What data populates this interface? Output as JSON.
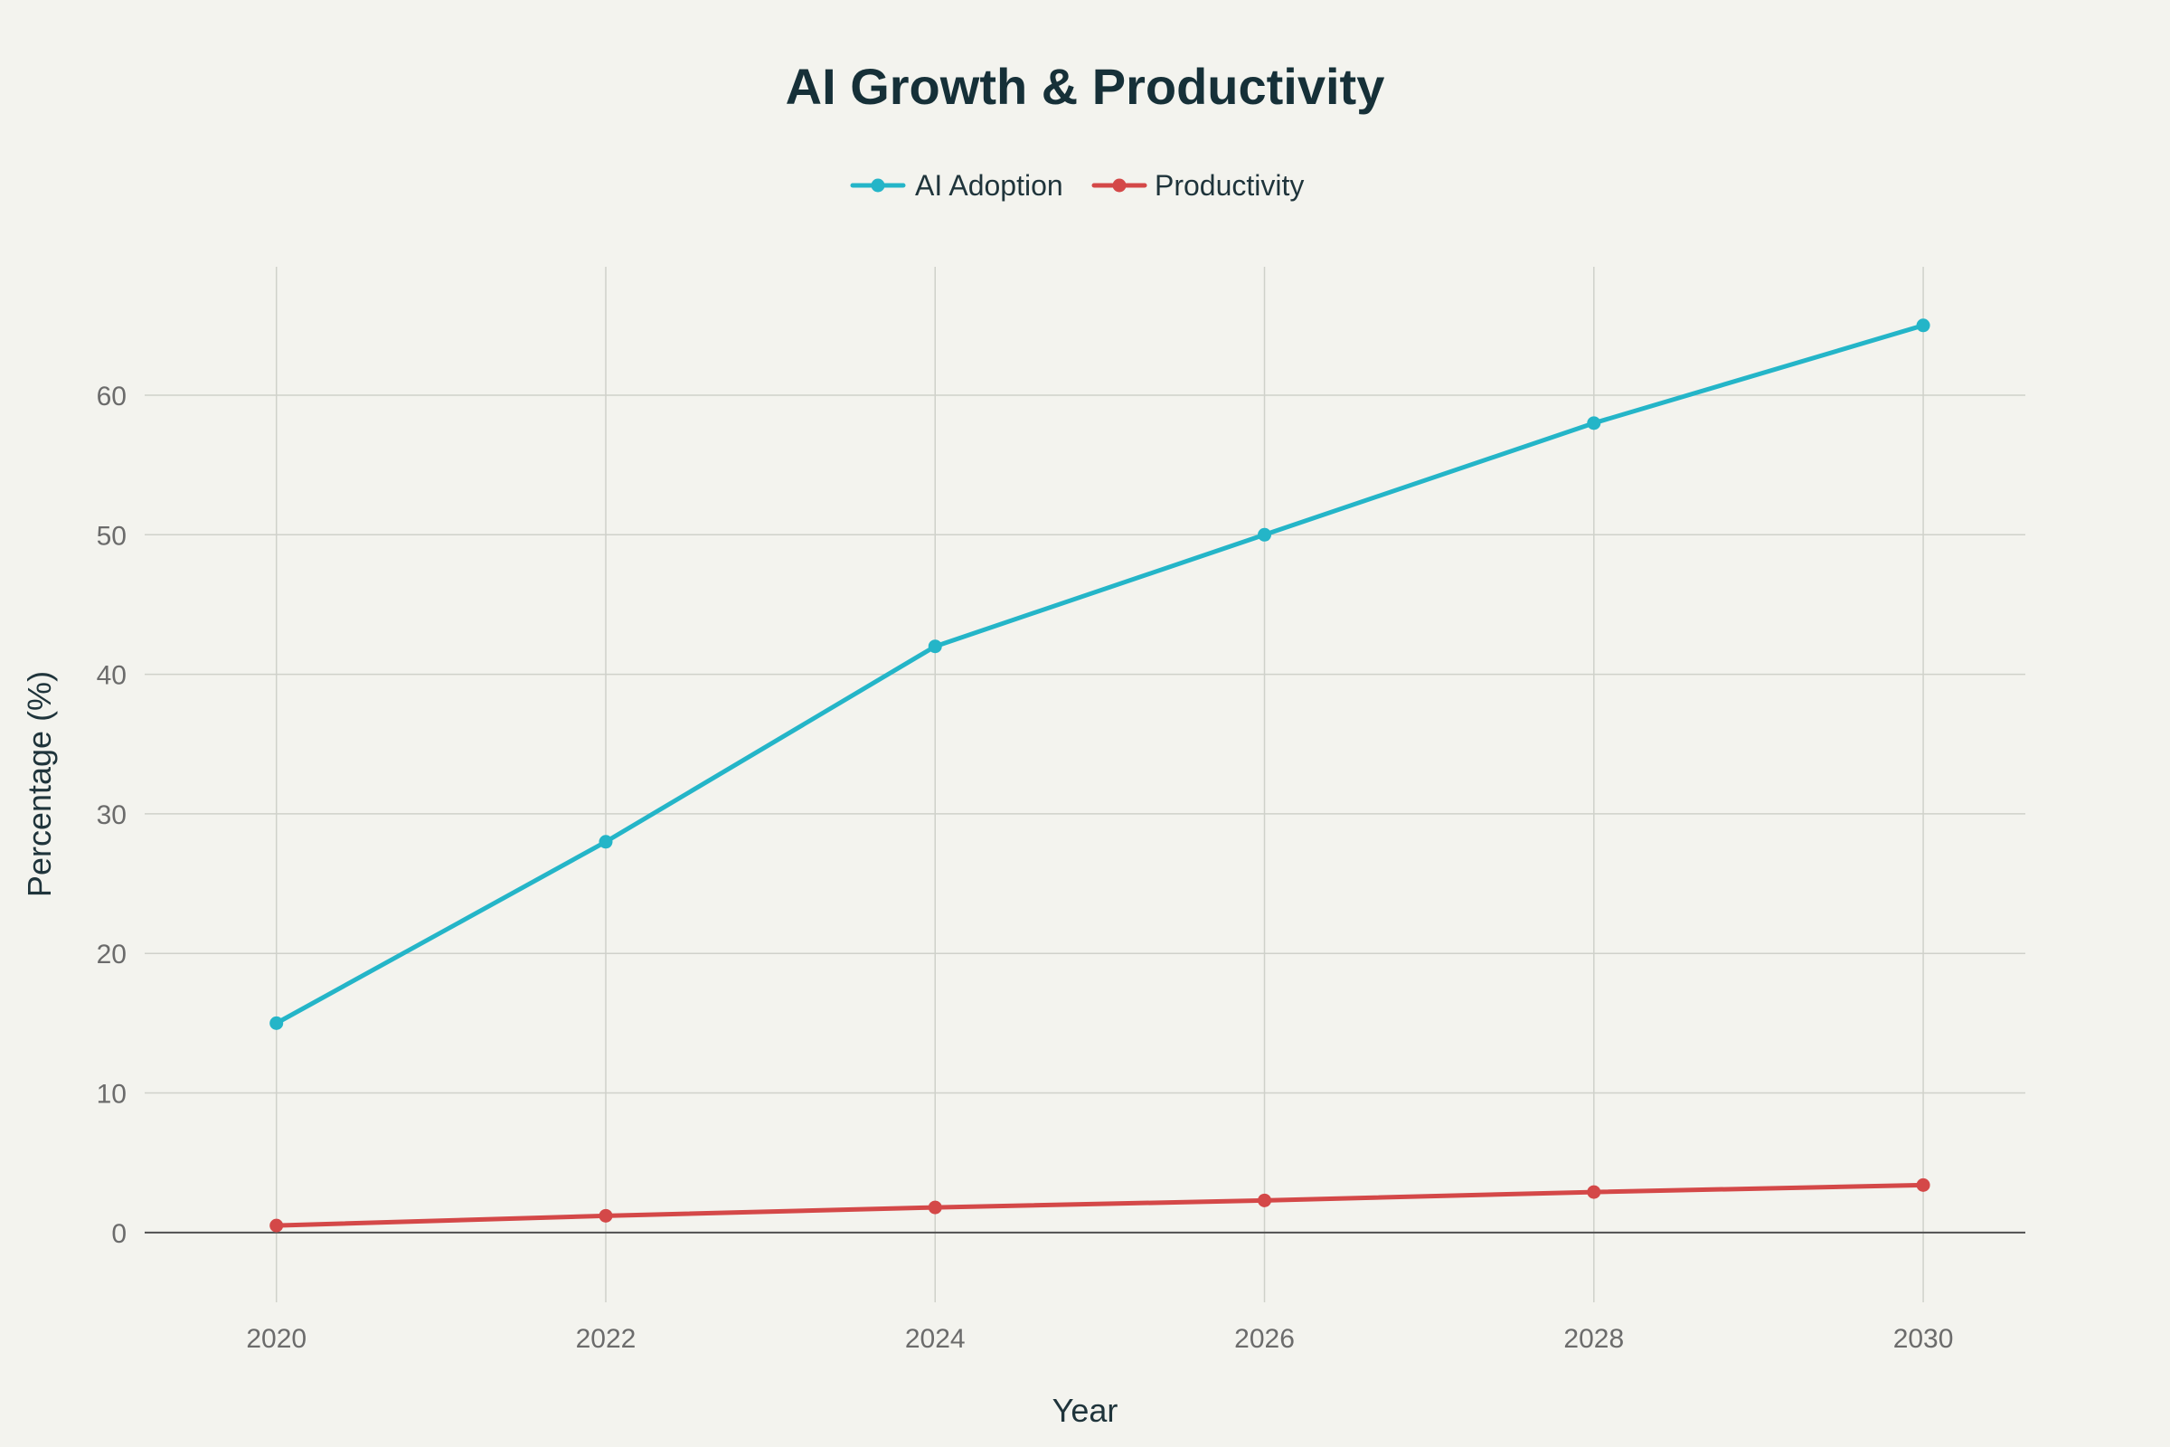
{
  "chart_data": {
    "type": "line",
    "title": "AI Growth & Productivity",
    "xlabel": "Year",
    "ylabel": "Percentage (%)",
    "x": [
      2020,
      2022,
      2024,
      2026,
      2028,
      2030
    ],
    "x_tick_labels": [
      "2020",
      "2022",
      "2024",
      "2026",
      "2028",
      "2030"
    ],
    "xlim": [
      2019.2,
      2030.62
    ],
    "ylim": [
      -5,
      69.2
    ],
    "y_ticks": [
      0,
      10,
      20,
      30,
      40,
      50,
      60
    ],
    "y_tick_labels": [
      "0",
      "10",
      "20",
      "30",
      "40",
      "50",
      "60"
    ],
    "grid": true,
    "legend_position": "top-center",
    "series": [
      {
        "name": "AI Adoption",
        "color": "#24b5c8",
        "values": [
          15,
          28,
          42,
          50,
          58,
          65
        ]
      },
      {
        "name": "Productivity",
        "color": "#d44848",
        "values": [
          0.5,
          1.2,
          1.8,
          2.3,
          2.9,
          3.4
        ]
      }
    ]
  },
  "colors": {
    "background": "#f3f3ee",
    "title": "#163038",
    "ticks": "#6b6b6b"
  }
}
